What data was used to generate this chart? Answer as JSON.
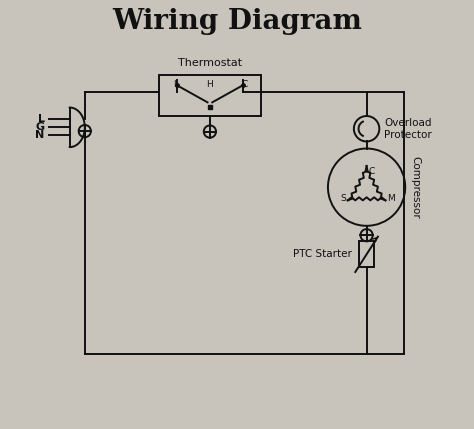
{
  "title": "Wiring Diagram",
  "bg_color": "#c8c4bc",
  "line_color": "#111111",
  "title_fontsize": 20,
  "label_fontsize": 8,
  "small_fontsize": 7.5,
  "thermostat_label": "Thermostat",
  "overload_label": [
    "Overload",
    "Protector"
  ],
  "compressor_label": "Compressor",
  "ptc_label": "PTC Starter",
  "plug_labels": [
    "L",
    "G",
    "N"
  ]
}
